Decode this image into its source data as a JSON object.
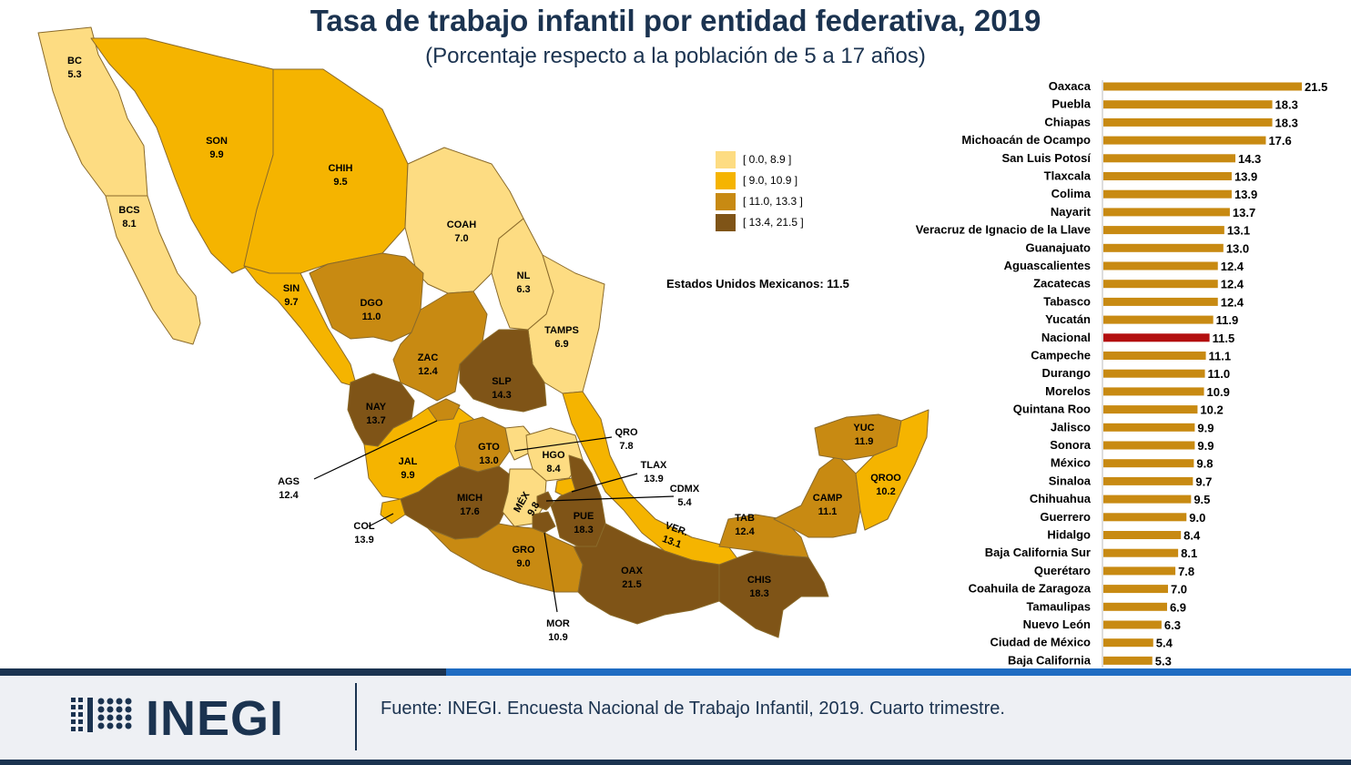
{
  "title": "Tasa de trabajo infantil por entidad federativa, 2019",
  "subtitle": "(Porcentaje respecto a la población de 5 a 17 años)",
  "national_note": "Estados Unidos Mexicanos: 11.5",
  "legend": [
    {
      "label": "[ 0.0, 8.9 ]",
      "color": "#fddc82"
    },
    {
      "label": "[ 9.0, 10.9 ]",
      "color": "#f5b400"
    },
    {
      "label": "[ 11.0, 13.3 ]",
      "color": "#c88a12"
    },
    {
      "label": "[ 13.4, 21.5 ]",
      "color": "#7f5417"
    }
  ],
  "map_labels": [
    {
      "abbr": "BC",
      "value": "5.3",
      "bin": 0
    },
    {
      "abbr": "BCS",
      "value": "8.1",
      "bin": 0
    },
    {
      "abbr": "SON",
      "value": "9.9",
      "bin": 1
    },
    {
      "abbr": "CHIH",
      "value": "9.5",
      "bin": 1
    },
    {
      "abbr": "COAH",
      "value": "7.0",
      "bin": 0
    },
    {
      "abbr": "NL",
      "value": "6.3",
      "bin": 0
    },
    {
      "abbr": "TAMPS",
      "value": "6.9",
      "bin": 0
    },
    {
      "abbr": "SIN",
      "value": "9.7",
      "bin": 1
    },
    {
      "abbr": "DGO",
      "value": "11.0",
      "bin": 2
    },
    {
      "abbr": "ZAC",
      "value": "12.4",
      "bin": 2
    },
    {
      "abbr": "SLP",
      "value": "14.3",
      "bin": 3
    },
    {
      "abbr": "NAY",
      "value": "13.7",
      "bin": 3
    },
    {
      "abbr": "JAL",
      "value": "9.9",
      "bin": 1
    },
    {
      "abbr": "AGS",
      "value": "12.4",
      "bin": 2
    },
    {
      "abbr": "GTO",
      "value": "13.0",
      "bin": 2
    },
    {
      "abbr": "QRO",
      "value": "7.8",
      "bin": 0
    },
    {
      "abbr": "HGO",
      "value": "8.4",
      "bin": 0
    },
    {
      "abbr": "TLAX",
      "value": "13.9",
      "bin": 3
    },
    {
      "abbr": "CDMX",
      "value": "5.4",
      "bin": 0
    },
    {
      "abbr": "MICH",
      "value": "17.6",
      "bin": 3
    },
    {
      "abbr": "MÉX",
      "value": "9.8",
      "bin": 1
    },
    {
      "abbr": "PUE",
      "value": "18.3",
      "bin": 3
    },
    {
      "abbr": "COL",
      "value": "13.9",
      "bin": 3
    },
    {
      "abbr": "GRO",
      "value": "9.0",
      "bin": 1
    },
    {
      "abbr": "MOR",
      "value": "10.9",
      "bin": 1
    },
    {
      "abbr": "VER.",
      "value": "13.1",
      "bin": 2
    },
    {
      "abbr": "OAX",
      "value": "21.5",
      "bin": 3
    },
    {
      "abbr": "TAB",
      "value": "12.4",
      "bin": 2
    },
    {
      "abbr": "CHIS",
      "value": "18.3",
      "bin": 3
    },
    {
      "abbr": "CAMP",
      "value": "11.1",
      "bin": 2
    },
    {
      "abbr": "YUC",
      "value": "11.9",
      "bin": 2
    },
    {
      "abbr": "QROO",
      "value": "10.2",
      "bin": 1
    }
  ],
  "chart_data": {
    "type": "bar",
    "orientation": "horizontal",
    "categories": [
      "Oaxaca",
      "Puebla",
      "Chiapas",
      "Michoacán de Ocampo",
      "San Luis Potosí",
      "Tlaxcala",
      "Colima",
      "Nayarit",
      "Veracruz de Ignacio de la Llave",
      "Guanajuato",
      "Aguascalientes",
      "Zacatecas",
      "Tabasco",
      "Yucatán",
      "Nacional",
      "Campeche",
      "Durango",
      "Morelos",
      "Quintana Roo",
      "Jalisco",
      "Sonora",
      "México",
      "Sinaloa",
      "Chihuahua",
      "Guerrero",
      "Hidalgo",
      "Baja California Sur",
      "Querétaro",
      "Coahuila de Zaragoza",
      "Tamaulipas",
      "Nuevo León",
      "Ciudad de México",
      "Baja California"
    ],
    "values": [
      21.5,
      18.3,
      18.3,
      17.6,
      14.3,
      13.9,
      13.9,
      13.7,
      13.1,
      13.0,
      12.4,
      12.4,
      12.4,
      11.9,
      11.5,
      11.1,
      11.0,
      10.9,
      10.2,
      9.9,
      9.9,
      9.8,
      9.7,
      9.5,
      9.0,
      8.4,
      8.1,
      7.8,
      7.0,
      6.9,
      6.3,
      5.4,
      5.3
    ],
    "value_labels": [
      "21.5",
      "18.3",
      "18.3",
      "17.6",
      "14.3",
      "13.9",
      "13.9",
      "13.7",
      "13.1",
      "13.0",
      "12.4",
      "12.4",
      "12.4",
      "11.9",
      "11.5",
      "11.1",
      "11.0",
      "10.9",
      "10.2",
      "9.9",
      "9.9",
      "9.8",
      "9.7",
      "9.5",
      "9.0",
      "8.4",
      "8.1",
      "7.8",
      "7.0",
      "6.9",
      "6.3",
      "5.4",
      "5.3"
    ],
    "colors": {
      "bar": "#c88a12",
      "highlight": "#b30f0f"
    },
    "highlight_category": "Nacional",
    "title": "Tasa de trabajo infantil por entidad federativa, 2019",
    "subtitle": "(Porcentaje respecto a la población de 5 a 17 años)",
    "xlim": [
      0,
      21.5
    ]
  },
  "footer": {
    "logo_text": "INEGI",
    "source": "Fuente:  INEGI. Encuesta Nacional de Trabajo Infantil, 2019. Cuarto trimestre."
  }
}
